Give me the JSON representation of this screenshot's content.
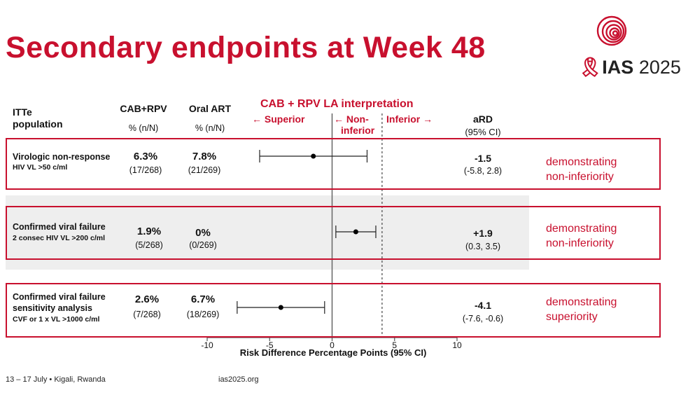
{
  "slide": {
    "title": "Secondary endpoints at Week 48",
    "logo_text_ias": "IAS",
    "logo_text_year": "2025",
    "footer_dates": "13 – 17 July",
    "footer_bullet": "•",
    "footer_location": "Kigali, Rwanda",
    "footer_url": "ias2025.org"
  },
  "headers": {
    "population_line1": "ITTe",
    "population_line2": "population",
    "arm1": "CAB+RPV",
    "arm1_unit": "% (n/N)",
    "arm2": "Oral ART",
    "arm2_unit": "% (n/N)",
    "interpretation_title": "CAB + RPV LA interpretation",
    "superior": "← Superior",
    "non_inferior_line1": "← Non-",
    "non_inferior_line2": "inferior",
    "inferior": "Inferior →",
    "ard": "aRD",
    "ard_ci": "(95% CI)"
  },
  "rows": [
    {
      "label_lines": [
        "Virologic non-response"
      ],
      "sub_lines": [
        "HIV VL >50 c/ml"
      ],
      "arm1_pct": "6.3%",
      "arm1_nn": "(17/268)",
      "arm2_pct": "7.8%",
      "arm2_nn": "(21/269)",
      "ard": "-1.5",
      "ci": "(-5.8, 2.8)",
      "conclusion_line1": "demonstrating",
      "conclusion_line2": "non-inferiority"
    },
    {
      "label_lines": [
        "Confirmed viral failure"
      ],
      "sub_lines": [
        "2 consec HIV VL >200 c/ml"
      ],
      "arm1_pct": "1.9%",
      "arm1_nn": "(5/268)",
      "arm2_pct": "0%",
      "arm2_nn": "(0/269)",
      "ard": "+1.9",
      "ci": "(0.3, 3.5)",
      "conclusion_line1": "demonstrating",
      "conclusion_line2": "non-inferiority"
    },
    {
      "label_lines": [
        "Confirmed viral failure",
        "sensitivity analysis"
      ],
      "sub_lines": [
        "CVF or 1 x VL >1000 c/ml"
      ],
      "arm1_pct": "2.6%",
      "arm1_nn": "(7/268)",
      "arm2_pct": "6.7%",
      "arm2_nn": "(18/269)",
      "ard": "-4.1",
      "ci": "(-7.6, -0.6)",
      "conclusion_line1": "demonstrating",
      "conclusion_line2": "superiority"
    }
  ],
  "colors": {
    "accent": "#c8102e",
    "band": "#eeeeee",
    "text": "#111111"
  },
  "chart_data": {
    "type": "forest",
    "xlabel": "Risk Difference Percentage Points (95% CI)",
    "xlim": [
      -10,
      10
    ],
    "xticks": [
      -10,
      -5,
      0,
      5,
      10
    ],
    "xtick_labels": [
      "-10",
      "-5",
      "0",
      "5",
      "10"
    ],
    "reference_line": 0,
    "noninferiority_margin": 4,
    "series": [
      {
        "estimate": -1.5,
        "lower": -5.8,
        "upper": 2.8
      },
      {
        "estimate": 1.9,
        "lower": 0.3,
        "upper": 3.5
      },
      {
        "estimate": -4.1,
        "lower": -7.6,
        "upper": -0.6
      }
    ]
  }
}
